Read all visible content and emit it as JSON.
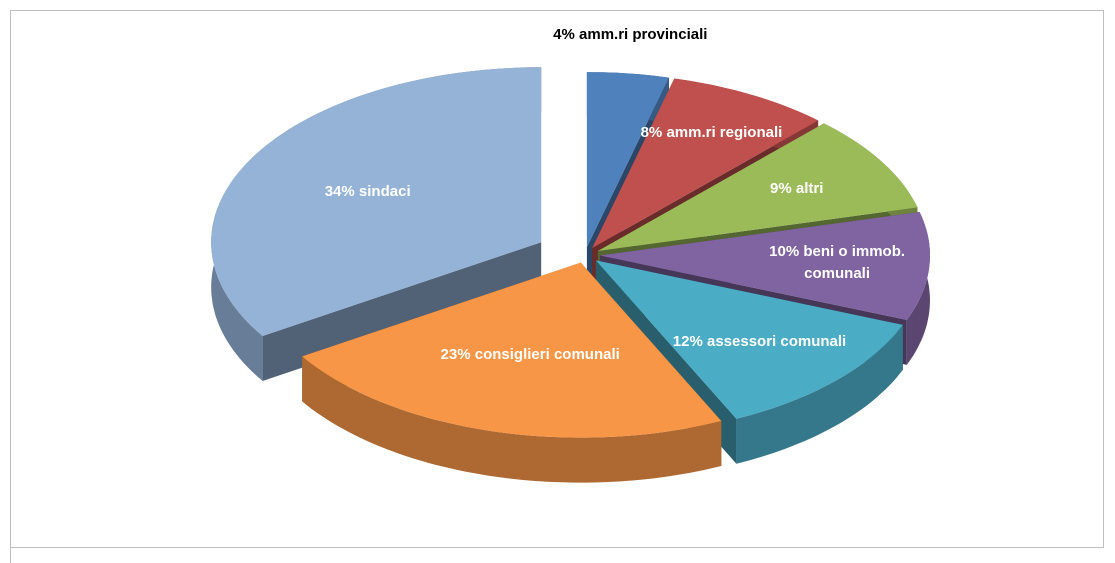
{
  "chart_data": {
    "type": "pie",
    "categories": [
      "amm.ri provinciali",
      "amm.ri regionali",
      "altri",
      "beni o immob. comunali",
      "assessori comunali",
      "consiglieri comunali",
      "sindaci"
    ],
    "values": [
      4,
      8,
      9,
      10,
      12,
      23,
      34
    ],
    "value_labels": [
      "4%",
      "8%",
      "9%",
      "10%",
      "12%",
      "23%",
      "34%"
    ],
    "colors": [
      "#4f81bd",
      "#c0504d",
      "#9bbb59",
      "#8064a2",
      "#4bacc6",
      "#f79646",
      "#95b3d7"
    ]
  }
}
